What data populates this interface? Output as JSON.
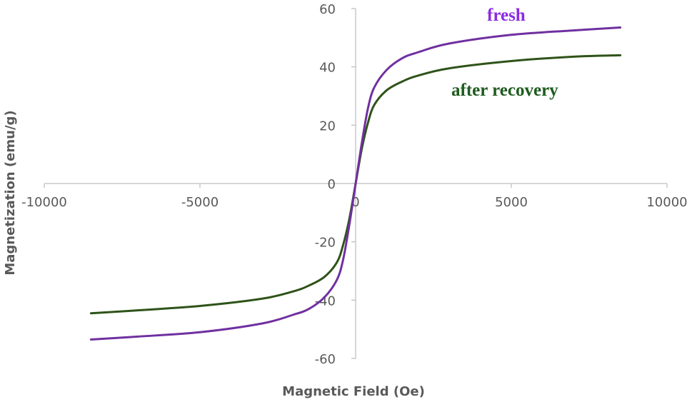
{
  "chart_data": {
    "type": "line",
    "title": "",
    "xlabel": "Magnetic Field (Oe)",
    "ylabel": "Magnetization (emu/g)",
    "xlim": [
      -10000,
      10000
    ],
    "ylim": [
      -60,
      60
    ],
    "xticks": [
      -10000,
      -5000,
      0,
      5000,
      10000
    ],
    "xtick_labels": [
      "-10000",
      "-5000",
      "0",
      "5000",
      "10000"
    ],
    "yticks": [
      -60,
      -40,
      -20,
      0,
      20,
      40,
      60
    ],
    "ytick_labels": [
      "-60",
      "-40",
      "-20",
      "0",
      "20",
      "40",
      "60"
    ],
    "grid": false,
    "legend": "none",
    "series": [
      {
        "name": "fresh",
        "color": "#7030a0",
        "label_color": "#8a2be2",
        "x": [
          -8500,
          -7000,
          -5000,
          -3000,
          -2000,
          -1500,
          -1000,
          -600,
          -400,
          -200,
          0,
          200,
          400,
          600,
          1000,
          1500,
          2000,
          3000,
          5000,
          7000,
          8500
        ],
        "y": [
          -53.5,
          -52.5,
          -51,
          -48,
          -45,
          -43,
          -39,
          -33,
          -26,
          -14,
          0,
          14,
          26,
          33,
          39,
          43,
          45,
          48,
          51,
          52.5,
          53.5
        ]
      },
      {
        "name": "after recovery",
        "color": "#2f5319",
        "label_color": "#1e5b1e",
        "x": [
          -8500,
          -7000,
          -5000,
          -3000,
          -2000,
          -1500,
          -1000,
          -600,
          -400,
          -200,
          0,
          200,
          400,
          600,
          1000,
          1500,
          2000,
          3000,
          5000,
          7000,
          8500
        ],
        "y": [
          -44.5,
          -43.5,
          -42,
          -39.5,
          -37,
          -35,
          -32,
          -27,
          -21,
          -12,
          0,
          12,
          21,
          27,
          32,
          35,
          37,
          39.5,
          42,
          43.5,
          44
        ]
      }
    ]
  }
}
